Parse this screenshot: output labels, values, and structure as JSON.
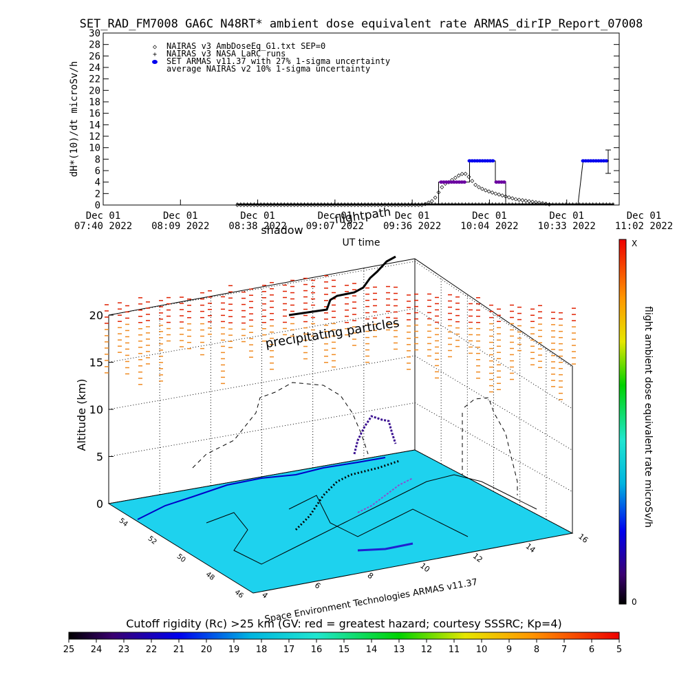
{
  "title": "SET_RAD_FM7008  GA6C N48RT* ambient dose equivalent rate ARMAS_dirIP_Report_07008",
  "ts_chart": {
    "type": "line",
    "ylabel": "dH*(10)/dt microSv/h",
    "xlabel": "UT time",
    "ylim": [
      0,
      30
    ],
    "yticks": [
      "0",
      "2",
      "4",
      "6",
      "8",
      "10",
      "12",
      "14",
      "16",
      "18",
      "20",
      "22",
      "24",
      "26",
      "28",
      "30"
    ],
    "xticks": [
      {
        "l1": "Dec 01",
        "l2": "07:40 2022"
      },
      {
        "l1": "Dec 01",
        "l2": "08:09 2022"
      },
      {
        "l1": "Dec 01",
        "l2": "08:38 2022"
      },
      {
        "l1": "Dec 01",
        "l2": "09:07 2022"
      },
      {
        "l1": "Dec 01",
        "l2": "09:36 2022"
      },
      {
        "l1": "Dec 01",
        "l2": "10:04 2022"
      },
      {
        "l1": "Dec 01",
        "l2": "10:33 2022"
      },
      {
        "l1": "Dec 01",
        "l2": "11:02 2022"
      }
    ],
    "legend": [
      {
        "symbol": "◇",
        "label": "NAIRAS v3 AmbDoseEq_G1.txt SEP=0"
      },
      {
        "symbol": "+",
        "label": "NAIRAS v3 NASA LaRC runs"
      },
      {
        "symbol": "●",
        "label": "SET ARMAS v11.37 with 27% 1-sigma uncertainty"
      },
      {
        "symbol": "",
        "label": "average NAIRAS v2 10% 1-sigma uncertainty"
      }
    ],
    "series": [
      {
        "name": "NAIRAS v3 AmbDoseEq_G1.txt SEP=0",
        "points": [
          [
            0.26,
            0
          ],
          [
            0.62,
            0
          ],
          [
            0.64,
            0.8
          ],
          [
            0.65,
            2.2
          ],
          [
            0.66,
            3.6
          ],
          [
            0.67,
            4.0
          ],
          [
            0.68,
            4.6
          ],
          [
            0.69,
            5.2
          ],
          [
            0.7,
            5.6
          ],
          [
            0.71,
            4.8
          ],
          [
            0.72,
            3.6
          ],
          [
            0.73,
            3.0
          ],
          [
            0.74,
            2.6
          ],
          [
            0.76,
            2.0
          ],
          [
            0.78,
            1.5
          ],
          [
            0.8,
            1.0
          ],
          [
            0.83,
            0.6
          ],
          [
            0.86,
            0.2
          ],
          [
            0.87,
            0
          ]
        ]
      },
      {
        "name": "NAIRAS v3 NASA LaRC runs",
        "points": [
          [
            0.26,
            0
          ],
          [
            0.99,
            0
          ]
        ]
      },
      {
        "name": "SET ARMAS v11.37 with 27% 1-sigma uncertainty",
        "points": [
          [
            0.66,
            4.0
          ],
          [
            0.7,
            4.0
          ],
          [
            0.71,
            7.7
          ],
          [
            0.72,
            7.7
          ],
          [
            0.76,
            7.7
          ],
          [
            0.77,
            4.0
          ],
          [
            0.78,
            4.0
          ],
          [
            0.93,
            7.7
          ],
          [
            0.98,
            7.7
          ]
        ]
      }
    ]
  },
  "altitude_chart": {
    "type": "scatter",
    "ylabel": "Altitude (km)",
    "zticks": [
      "0",
      "5",
      "10",
      "15",
      "20"
    ],
    "lat_ticks": [
      "54",
      "52",
      "50",
      "48",
      "46"
    ],
    "lon_ticks": [
      "4",
      "6",
      "8",
      "10",
      "12",
      "14",
      "16"
    ],
    "labels": {
      "flightpath": "flightpath",
      "shadow": "shadow",
      "particles": "precipitating particles",
      "credit": "Space Environment Technologies ARMAS v11.37"
    }
  },
  "colorbar_right": {
    "label": "flight ambient dose equivalent rate microSv/h",
    "top": "X",
    "bottom": "0"
  },
  "colorbar_bottom": {
    "label": "Cutoff rigidity (Rc) >25 km (GV: red = greatest hazard; courtesy SSSRC; Kp=4)",
    "ticks": [
      "25",
      "24",
      "23",
      "22",
      "21",
      "20",
      "19",
      "18",
      "17",
      "16",
      "15",
      "14",
      "13",
      "12",
      "11",
      "10",
      "9",
      "8",
      "7",
      "6",
      "5"
    ]
  },
  "colors": {
    "armas": "#0000ee",
    "armas_fill": "#6a00a0",
    "map_fill": "#1ed2ee",
    "particle_high": "#e02000",
    "particle_low": "#f08a20"
  }
}
